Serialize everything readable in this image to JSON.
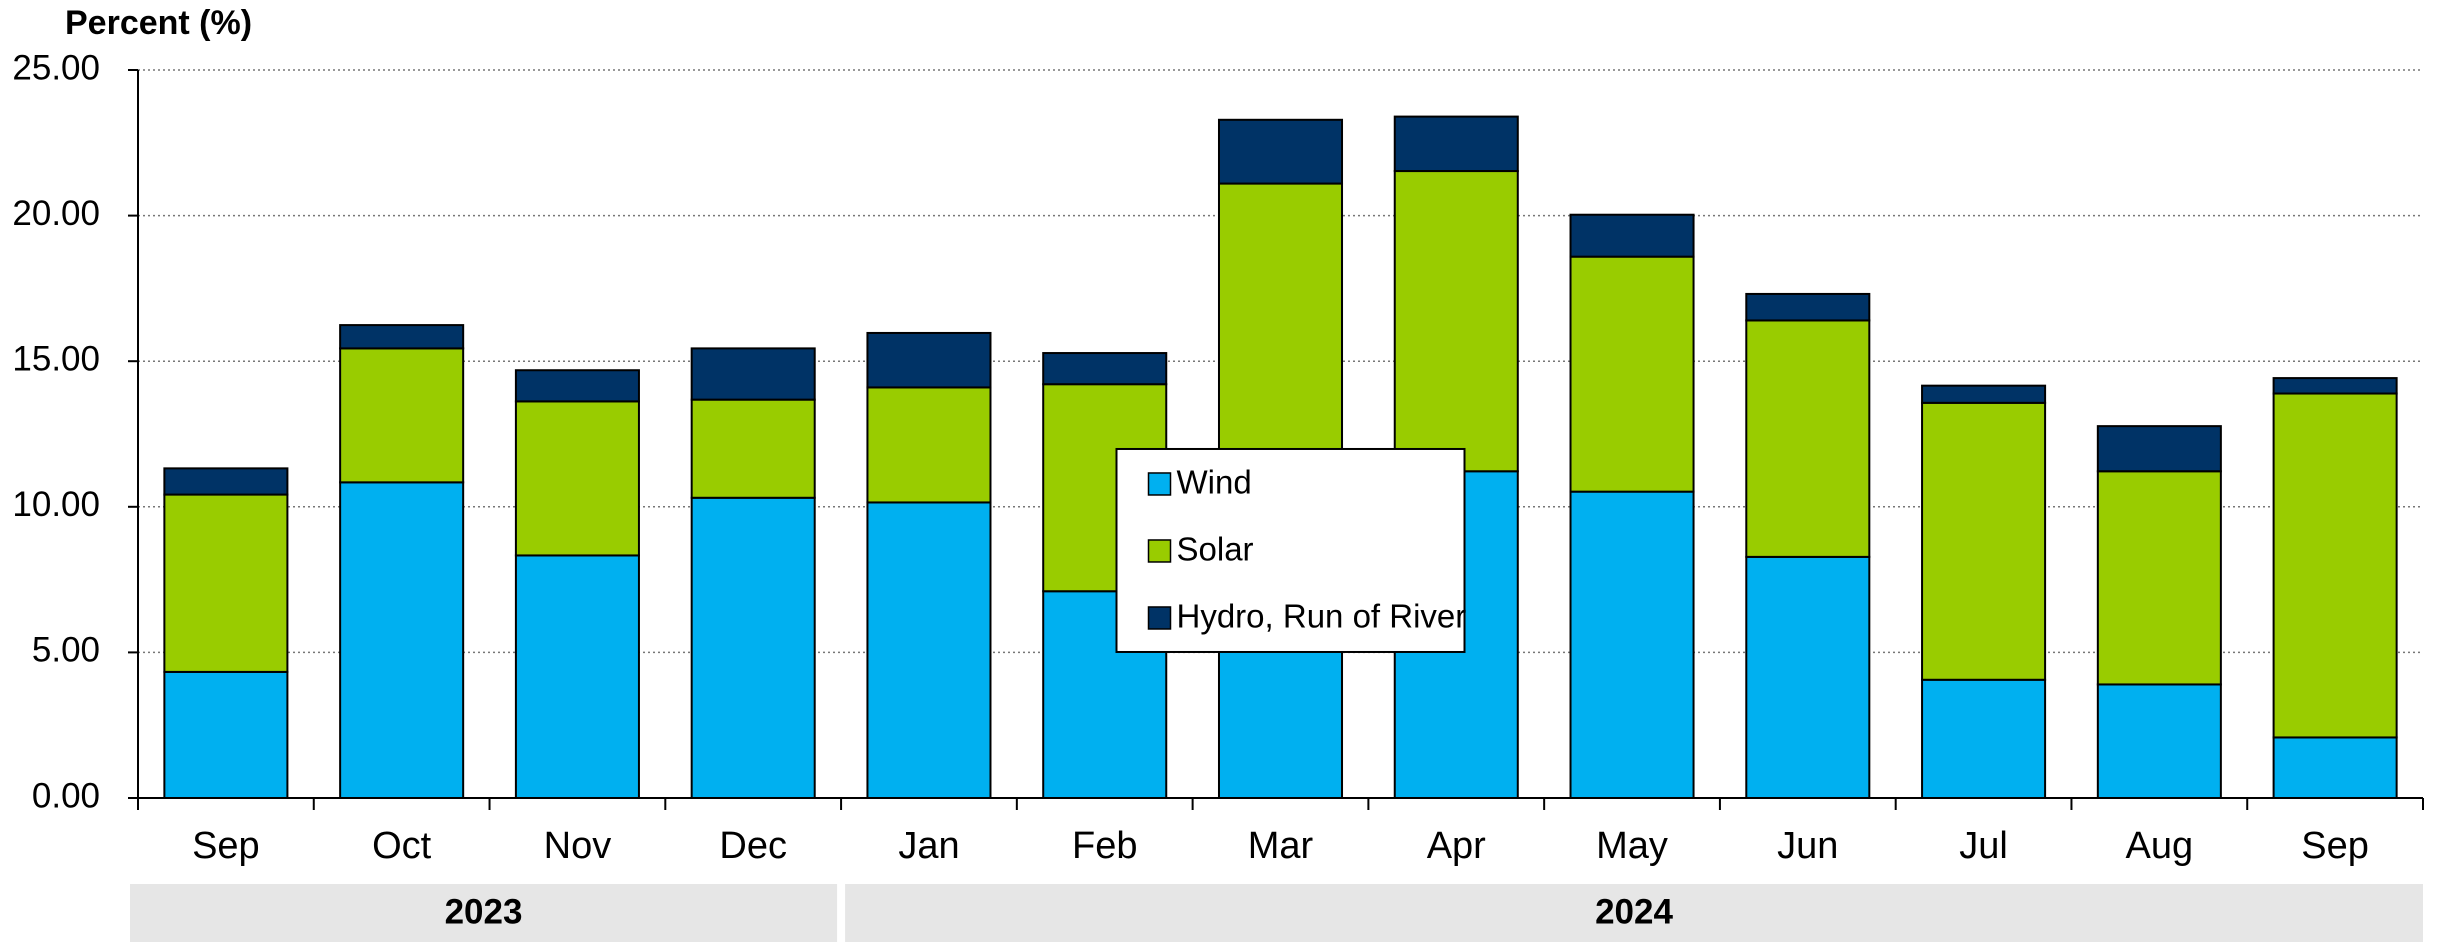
{
  "chart_data": {
    "type": "stacked_bar",
    "y_axis_label": "Percent (%)",
    "categories": [
      "Sep",
      "Oct",
      "Nov",
      "Dec",
      "Jan",
      "Feb",
      "Mar",
      "Apr",
      "May",
      "Jun",
      "Jul",
      "Aug",
      "Sep"
    ],
    "x_groups": [
      {
        "label": "2023",
        "count": 4
      },
      {
        "label": "2024",
        "count": 9
      }
    ],
    "series": [
      {
        "name": "Wind",
        "color": "#00b0f0",
        "values": [
          4.33,
          10.84,
          8.33,
          10.31,
          10.15,
          7.1,
          11.65,
          11.22,
          10.52,
          8.28,
          4.06,
          3.9,
          2.08
        ]
      },
      {
        "name": "Solar",
        "color": "#99cc00",
        "values": [
          6.09,
          4.6,
          5.29,
          3.37,
          3.95,
          7.11,
          9.45,
          10.31,
          8.07,
          8.12,
          9.51,
          7.32,
          11.81
        ]
      },
      {
        "name": "Hydro, Run of River",
        "color": "#003366",
        "values": [
          0.9,
          0.8,
          1.07,
          1.76,
          1.87,
          1.07,
          2.19,
          1.87,
          1.44,
          0.91,
          0.59,
          1.55,
          0.53
        ]
      }
    ],
    "ylim": [
      0,
      25
    ],
    "yticks": [
      {
        "value": 0,
        "label": "0.00"
      },
      {
        "value": 5,
        "label": "5.00"
      },
      {
        "value": 10,
        "label": "10.00"
      },
      {
        "value": 15,
        "label": "15.00"
      },
      {
        "value": 20,
        "label": "20.00"
      },
      {
        "value": 25,
        "label": "25.00"
      }
    ],
    "grid": true,
    "legend_position": "center"
  }
}
